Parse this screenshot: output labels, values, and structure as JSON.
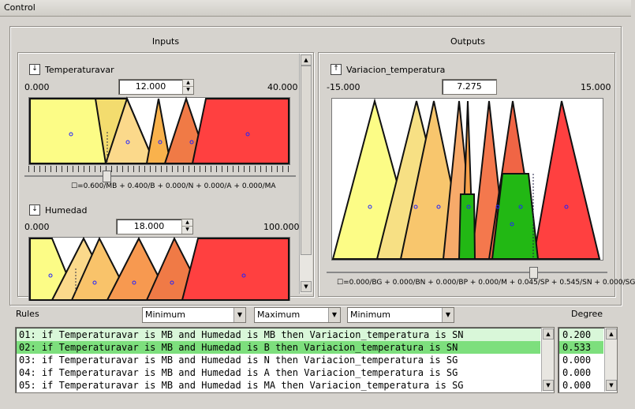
{
  "window": {
    "title": "Control"
  },
  "inputs_header": "Inputs",
  "outputs_header": "Outputs",
  "temperaturavar": {
    "name": "Temperaturavar",
    "min": "0.000",
    "max": "40.000",
    "value": "12.000",
    "formula": "☐=0.600/MB + 0.400/B + 0.000/N + 0.000/A + 0.000/MA"
  },
  "humedad": {
    "name": "Humedad",
    "min": "0.000",
    "max": "100.000",
    "value": "18.000"
  },
  "variacion": {
    "name": "Variacion_temperatura",
    "min": "-15.000",
    "max": "15.000",
    "value": "7.275",
    "formula": "☐=0.000/BG + 0.000/BN + 0.000/BP + 0.000/M + 0.045/SP + 0.545/SN + 0.000/SG"
  },
  "rules_label": "Rules",
  "degree_label": "Degree",
  "combos": [
    "Minimum",
    "Maximum",
    "Minimum"
  ],
  "rules": [
    {
      "text": "01: if Temperaturavar is MB and Humedad is MB then Variacion_temperatura is SN",
      "degree": "0.200"
    },
    {
      "text": "02: if Temperaturavar is MB and Humedad is B then Variacion_temperatura is SN",
      "degree": "0.533"
    },
    {
      "text": "03: if Temperaturavar is MB and Humedad is N then Variacion_temperatura is SG",
      "degree": "0.000"
    },
    {
      "text": "04: if Temperaturavar is MB and Humedad is A then Variacion_temperatura is SG",
      "degree": "0.000"
    },
    {
      "text": "05: if Temperaturavar is MB and Humedad is MA then Variacion_temperatura is SG",
      "degree": "0.000"
    }
  ],
  "colors": {
    "highlight": "#7ddf7d",
    "highlight_light": "#d9f7d9",
    "green_fill": "#22b814"
  }
}
